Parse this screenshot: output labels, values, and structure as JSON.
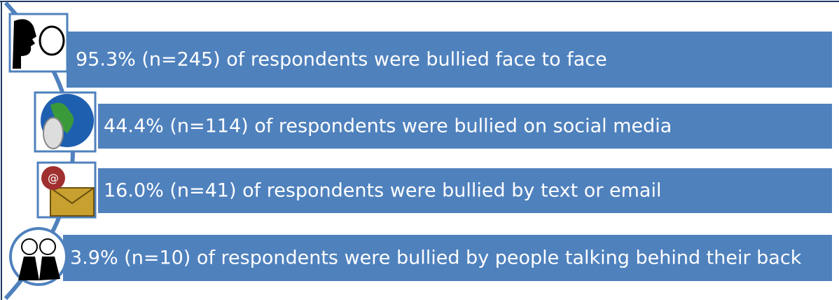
{
  "items": [
    {
      "text": "95.3% (n=245) of respondents were bullied face to face"
    },
    {
      "text": "44.4% (n=114) of respondents were bullied on social media"
    },
    {
      "text": "16.0% (n=41) of respondents were bullied by text or email"
    },
    {
      "text": "3.9% (n=10) of respondents were bullied by people talking behind their back"
    }
  ]
}
